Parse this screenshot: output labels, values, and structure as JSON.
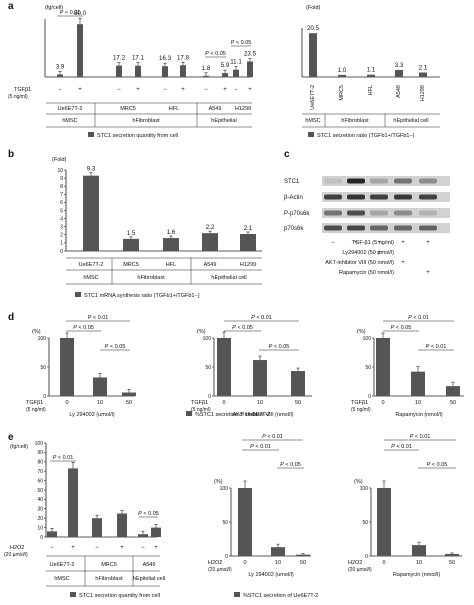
{
  "panels": {
    "a": "a",
    "b": "b",
    "c": "c",
    "d": "d",
    "e": "e"
  },
  "legends": {
    "a_left": "STC1 secretion quantity from cell",
    "a_right": "STC1 secretion ratio (TGFb1+/TGFb1−)",
    "b": "STC1 mRNA synthesis ratio (TGFb1+/TGFb1−)",
    "d": "%STC1 secretion of Ue6E7T-2",
    "e_left": "STC1 secretion quantity from cell",
    "e_right": "%STC1 secretion of Ue6E7T-2"
  },
  "common": {
    "tgf_label": "TGFβ1",
    "tgf_unit": "(5 ng/ml)",
    "h2o2_label": "H2O2",
    "h2o2_unit": "(20 µmol/l)",
    "minus": "−",
    "plus": "+",
    "pct_unit": "(%)",
    "fold_unit": "(Fold)",
    "fgcell_unit": "(fg/cell)",
    "group_hmsc": "hMSC",
    "group_hfib": "hFibroblast",
    "group_hepi": "hEpithelial",
    "group_hepi_cell": "hEpithelial cell",
    "group_hepitelial_cell": "hEpitelial cell"
  },
  "western_blot": {
    "row_labels": [
      "STC1",
      "β-Actin",
      "P-p70s6k",
      "p70s6k"
    ],
    "treatments": [
      {
        "label": "TGF-β1 (5 ng/ml)",
        "marks": [
          "−",
          "+",
          "+",
          "+",
          "+"
        ]
      },
      {
        "label": "Ly294002 (50 µmol/l)",
        "marks": [
          "",
          "",
          "+",
          "",
          ""
        ]
      },
      {
        "label": "AKT-inhibitor VIII (50 nmol/l)",
        "marks": [
          "",
          "",
          "",
          "+",
          ""
        ]
      },
      {
        "label": "Rapamycin (50 nmol/l)",
        "marks": [
          "",
          "",
          "",
          "",
          "+"
        ]
      }
    ]
  },
  "chart_data": [
    {
      "id": "a_left",
      "type": "bar",
      "ylabel": "(fg/cell)",
      "categories": [
        "Ue6E7T-2",
        "MRC5",
        "HFL",
        "A549",
        "H1299"
      ],
      "series": [
        {
          "name": "−",
          "values": [
            3.9,
            17.2,
            16.3,
            1.8,
            11.1
          ]
        },
        {
          "name": "+",
          "values": [
            80.0,
            17.1,
            17.8,
            5.9,
            23.5
          ]
        }
      ],
      "value_labels": [
        "3.9",
        "80.0",
        "17.2",
        "17.1",
        "16.3",
        "17.8",
        "1.8",
        "5.9",
        "11.1",
        "23.5"
      ],
      "ylim": [
        0,
        100
      ],
      "annotations": [
        "P < 0.01",
        "P < 0.05",
        "P < 0.05"
      ]
    },
    {
      "id": "a_right",
      "type": "bar",
      "ylabel": "(Fold)",
      "categories": [
        "Ue6E7T-2",
        "MRC5",
        "HFL",
        "A549",
        "H1299"
      ],
      "values": [
        20.5,
        1.0,
        1.1,
        3.3,
        2.1
      ],
      "value_labels": [
        "20.5",
        "1.0",
        "1.1",
        "3.3",
        "2.1"
      ],
      "ylim": [
        0,
        22
      ]
    },
    {
      "id": "b",
      "type": "bar",
      "ylabel": "(Fold)",
      "categories": [
        "Ue6E7T-2",
        "MRC5",
        "HFL",
        "A549",
        "H1299"
      ],
      "values": [
        9.3,
        1.5,
        1.6,
        2.2,
        2.1
      ],
      "value_labels": [
        "9.3",
        "1.5",
        "1.6",
        "2.2",
        "2.1"
      ],
      "ylim": [
        0,
        10
      ],
      "yticks": [
        "0",
        "1",
        "2",
        "3",
        "4",
        "5",
        "6",
        "7",
        "8",
        "9",
        "10"
      ]
    },
    {
      "id": "d1",
      "type": "bar",
      "ylabel": "(%)",
      "xlabel": "Ly 294002 (umol/l)",
      "categories": [
        "0",
        "10",
        "50"
      ],
      "values": [
        100,
        32,
        6
      ],
      "ylim": [
        0,
        100
      ],
      "yticks": [
        "0",
        "50",
        "100"
      ],
      "annotations": [
        "P < 0.01",
        "P < 0.05",
        "P < 0.05"
      ]
    },
    {
      "id": "d2",
      "type": "bar",
      "ylabel": "(%)",
      "xlabel": "AKT inhibitor VIII (nmol/l)",
      "categories": [
        "0",
        "10",
        "50"
      ],
      "values": [
        100,
        62,
        43
      ],
      "ylim": [
        0,
        100
      ],
      "yticks": [
        "0",
        "50",
        "100"
      ],
      "annotations": [
        "P < 0.01",
        "P < 0.05",
        "P < 0.05"
      ]
    },
    {
      "id": "d3",
      "type": "bar",
      "ylabel": "(%)",
      "xlabel": "Rapamycin (nmol/l)",
      "categories": [
        "0",
        "10",
        "50"
      ],
      "values": [
        100,
        42,
        17
      ],
      "ylim": [
        0,
        100
      ],
      "yticks": [
        "0",
        "50",
        "100"
      ],
      "annotations": [
        "P < 0.01",
        "P < 0.05",
        "P < 0.01"
      ]
    },
    {
      "id": "e1",
      "type": "bar",
      "ylabel": "(fg/cell)",
      "categories": [
        "Ue6E7T-2",
        "MRC5",
        "A549"
      ],
      "series": [
        {
          "name": "−",
          "values": [
            6,
            20,
            3
          ]
        },
        {
          "name": "+",
          "values": [
            73,
            25,
            10
          ]
        }
      ],
      "ylim": [
        0,
        100
      ],
      "yticks": [
        "0",
        "10",
        "20",
        "30",
        "40",
        "50",
        "60",
        "70",
        "80",
        "90",
        "100"
      ],
      "annotations": [
        "P < 0.01",
        "P < 0.05"
      ]
    },
    {
      "id": "e2",
      "type": "bar",
      "ylabel": "(%)",
      "xlabel": "Ly 294002 (umol/l)",
      "categories": [
        "0",
        "10",
        "50"
      ],
      "values": [
        100,
        13,
        2
      ],
      "ylim": [
        0,
        100
      ],
      "yticks": [
        "0",
        "50",
        "100"
      ],
      "annotations": [
        "P < 0.01",
        "P < 0.01",
        "P < 0.05"
      ]
    },
    {
      "id": "e3",
      "type": "bar",
      "ylabel": "(%)",
      "xlabel": "Rapamycin (nmol/l)",
      "categories": [
        "0",
        "10",
        "50"
      ],
      "values": [
        100,
        16,
        3
      ],
      "ylim": [
        0,
        100
      ],
      "yticks": [
        "0",
        "50",
        "100"
      ],
      "annotations": [
        "P < 0.01",
        "P < 0.01",
        "P < 0.05"
      ]
    }
  ]
}
